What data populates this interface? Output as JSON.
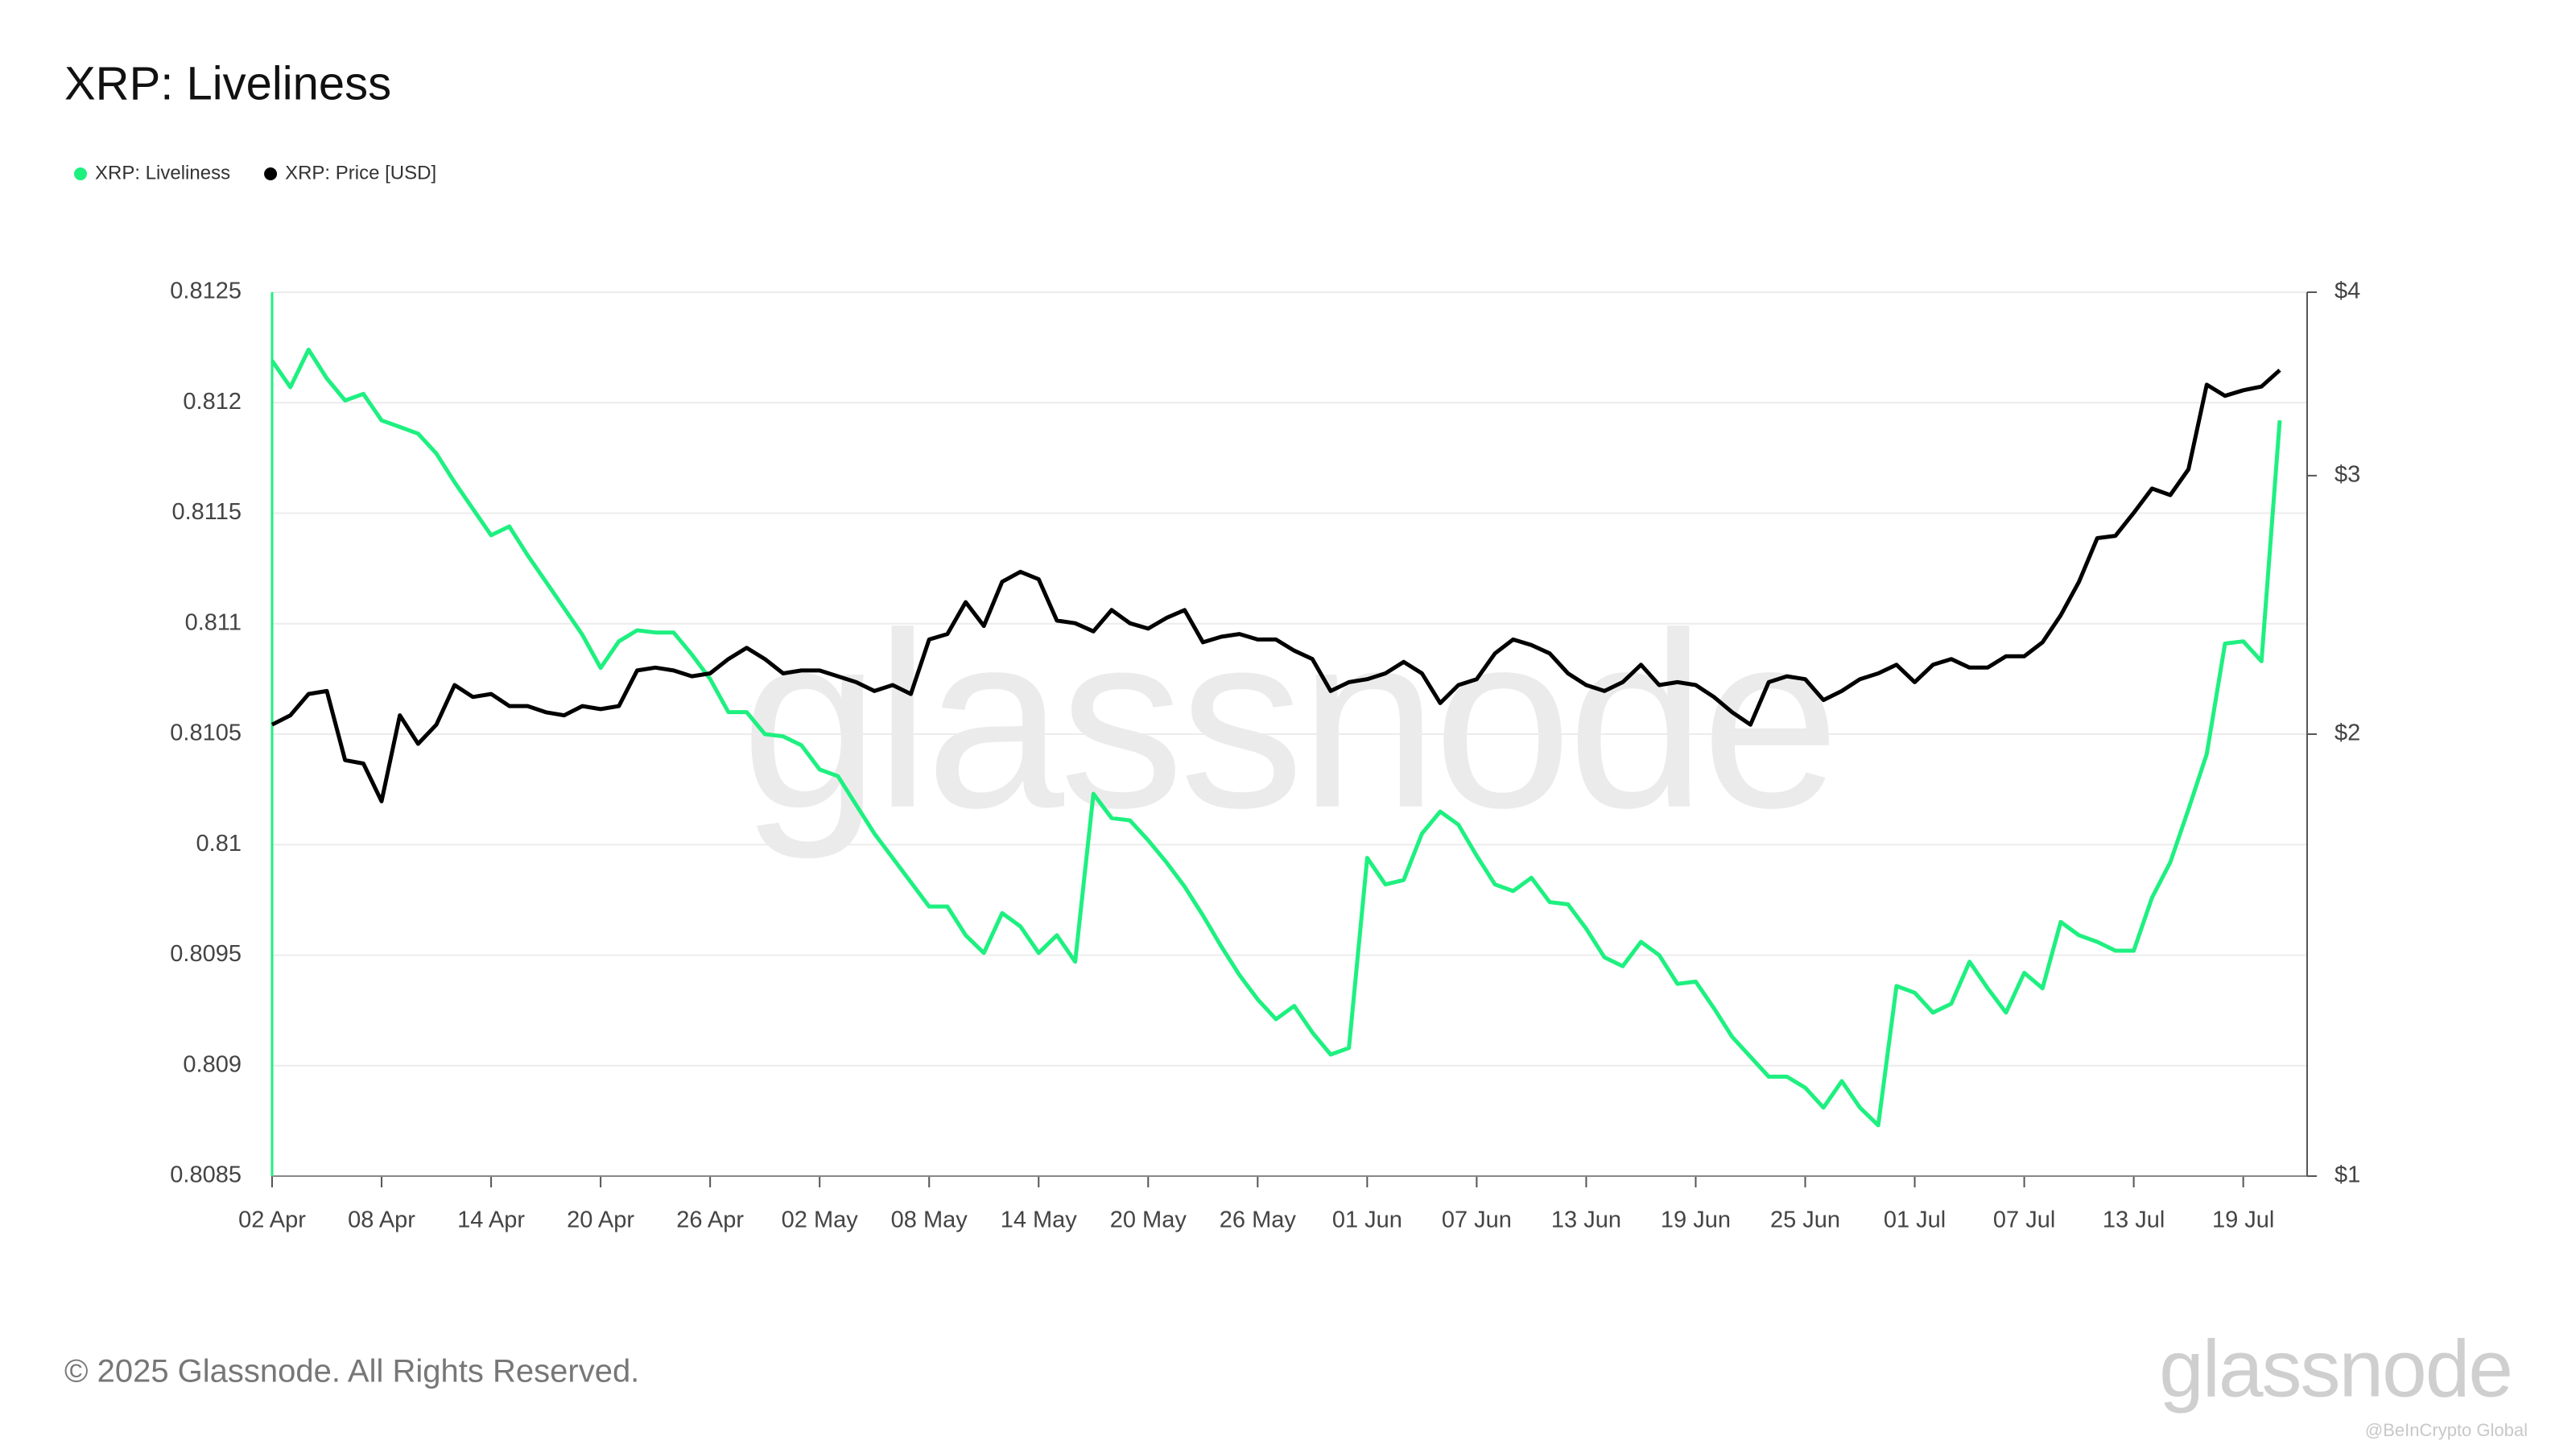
{
  "chart_data": {
    "type": "line",
    "title": "XRP: Liveliness",
    "x": [
      "02 Apr",
      "03 Apr",
      "04 Apr",
      "05 Apr",
      "06 Apr",
      "07 Apr",
      "08 Apr",
      "09 Apr",
      "10 Apr",
      "11 Apr",
      "12 Apr",
      "13 Apr",
      "14 Apr",
      "15 Apr",
      "16 Apr",
      "17 Apr",
      "18 Apr",
      "19 Apr",
      "20 Apr",
      "21 Apr",
      "22 Apr",
      "23 Apr",
      "24 Apr",
      "25 Apr",
      "26 Apr",
      "27 Apr",
      "28 Apr",
      "29 Apr",
      "30 Apr",
      "01 May",
      "02 May",
      "03 May",
      "04 May",
      "05 May",
      "06 May",
      "07 May",
      "08 May",
      "09 May",
      "10 May",
      "11 May",
      "12 May",
      "13 May",
      "14 May",
      "15 May",
      "16 May",
      "17 May",
      "18 May",
      "19 May",
      "20 May",
      "21 May",
      "22 May",
      "23 May",
      "24 May",
      "25 May",
      "26 May",
      "27 May",
      "28 May",
      "29 May",
      "30 May",
      "31 May",
      "01 Jun",
      "02 Jun",
      "03 Jun",
      "04 Jun",
      "05 Jun",
      "06 Jun",
      "07 Jun",
      "08 Jun",
      "09 Jun",
      "10 Jun",
      "11 Jun",
      "12 Jun",
      "13 Jun",
      "14 Jun",
      "15 Jun",
      "16 Jun",
      "17 Jun",
      "18 Jun",
      "19 Jun",
      "20 Jun",
      "21 Jun",
      "22 Jun",
      "23 Jun",
      "24 Jun",
      "25 Jun",
      "26 Jun",
      "27 Jun",
      "28 Jun",
      "29 Jun",
      "30 Jun",
      "01 Jul",
      "02 Jul",
      "03 Jul",
      "04 Jul",
      "05 Jul",
      "06 Jul",
      "07 Jul",
      "08 Jul",
      "09 Jul",
      "10 Jul",
      "11 Jul",
      "12 Jul",
      "13 Jul",
      "14 Jul",
      "15 Jul",
      "16 Jul",
      "17 Jul",
      "18 Jul",
      "19 Jul",
      "20 Jul",
      "21 Jul"
    ],
    "xticks": [
      "02 Apr",
      "08 Apr",
      "14 Apr",
      "20 Apr",
      "26 Apr",
      "02 May",
      "08 May",
      "14 May",
      "20 May",
      "26 May",
      "01 Jun",
      "07 Jun",
      "13 Jun",
      "19 Jun",
      "25 Jun",
      "01 Jul",
      "07 Jul",
      "13 Jul",
      "19 Jul"
    ],
    "ylim": [
      0.8085,
      0.8125
    ],
    "yticks": [
      0.8085,
      0.809,
      0.8095,
      0.81,
      0.8105,
      0.811,
      0.8115,
      0.812,
      0.8125
    ],
    "y2lim": [
      1,
      4
    ],
    "y2log": true,
    "y2ticks": [
      {
        "value": 1,
        "label": "$1"
      },
      {
        "value": 2,
        "label": "$2"
      },
      {
        "value": 3,
        "label": "$3"
      },
      {
        "value": 4,
        "label": "$4"
      }
    ],
    "grid": true,
    "legend": "top-left",
    "series": [
      {
        "name": "XRP: Liveliness",
        "color": "#1ef080",
        "values": [
          0.81219,
          0.81207,
          0.81224,
          0.81211,
          0.81201,
          0.81204,
          0.81192,
          0.81189,
          0.81186,
          0.81177,
          0.81164,
          0.81152,
          0.8114,
          0.81144,
          0.81131,
          0.81119,
          0.81107,
          0.81095,
          0.8108,
          0.81092,
          0.81097,
          0.81096,
          0.81096,
          0.81086,
          0.81075,
          0.8106,
          0.8106,
          0.8105,
          0.81049,
          0.81045,
          0.81034,
          0.81031,
          0.81018,
          0.81005,
          0.80994,
          0.80983,
          0.80972,
          0.80972,
          0.80959,
          0.80951,
          0.80969,
          0.80963,
          0.80951,
          0.80959,
          0.80947,
          0.81023,
          0.81012,
          0.81011,
          0.81002,
          0.80992,
          0.80981,
          0.80968,
          0.80954,
          0.80941,
          0.8093,
          0.80921,
          0.80927,
          0.80915,
          0.80905,
          0.80908,
          0.80994,
          0.80982,
          0.80984,
          0.81005,
          0.81015,
          0.81009,
          0.80995,
          0.80982,
          0.80979,
          0.80985,
          0.80974,
          0.80973,
          0.80962,
          0.80949,
          0.80945,
          0.80956,
          0.8095,
          0.80937,
          0.80938,
          0.80926,
          0.80913,
          0.80904,
          0.80895,
          0.80895,
          0.8089,
          0.80881,
          0.80893,
          0.80881,
          0.80873,
          0.80936,
          0.80933,
          0.80924,
          0.80928,
          0.80947,
          0.80935,
          0.80924,
          0.80942,
          0.80935,
          0.80965,
          0.80959,
          0.80956,
          0.80952,
          0.80952,
          0.80976,
          0.80992,
          0.81016,
          0.81041,
          0.81091,
          0.81092,
          0.81083,
          0.81192
        ]
      },
      {
        "name": "XRP: Price [USD]",
        "color": "#000000",
        "axis": "y2",
        "values": [
          2.03,
          2.06,
          2.13,
          2.14,
          1.92,
          1.91,
          1.8,
          2.06,
          1.97,
          2.03,
          2.16,
          2.12,
          2.13,
          2.09,
          2.09,
          2.07,
          2.06,
          2.09,
          2.08,
          2.09,
          2.21,
          2.22,
          2.21,
          2.19,
          2.2,
          2.25,
          2.29,
          2.25,
          2.2,
          2.21,
          2.21,
          2.19,
          2.17,
          2.14,
          2.16,
          2.13,
          2.32,
          2.34,
          2.46,
          2.37,
          2.54,
          2.58,
          2.55,
          2.39,
          2.38,
          2.35,
          2.43,
          2.38,
          2.36,
          2.4,
          2.43,
          2.31,
          2.33,
          2.34,
          2.32,
          2.32,
          2.28,
          2.25,
          2.14,
          2.17,
          2.18,
          2.2,
          2.24,
          2.2,
          2.1,
          2.16,
          2.18,
          2.27,
          2.32,
          2.3,
          2.27,
          2.2,
          2.16,
          2.14,
          2.17,
          2.23,
          2.16,
          2.17,
          2.16,
          2.12,
          2.07,
          2.03,
          2.17,
          2.19,
          2.18,
          2.11,
          2.14,
          2.18,
          2.2,
          2.23,
          2.17,
          2.23,
          2.25,
          2.22,
          2.22,
          2.26,
          2.26,
          2.31,
          2.41,
          2.54,
          2.72,
          2.73,
          2.83,
          2.94,
          2.91,
          3.03,
          3.46,
          3.4,
          3.43,
          3.45,
          3.54
        ]
      }
    ]
  },
  "watermark": "glassnode",
  "footer": "© 2025 Glassnode. All Rights Reserved.",
  "logo": "glassnode",
  "credit": "@BeInCrypto Global"
}
